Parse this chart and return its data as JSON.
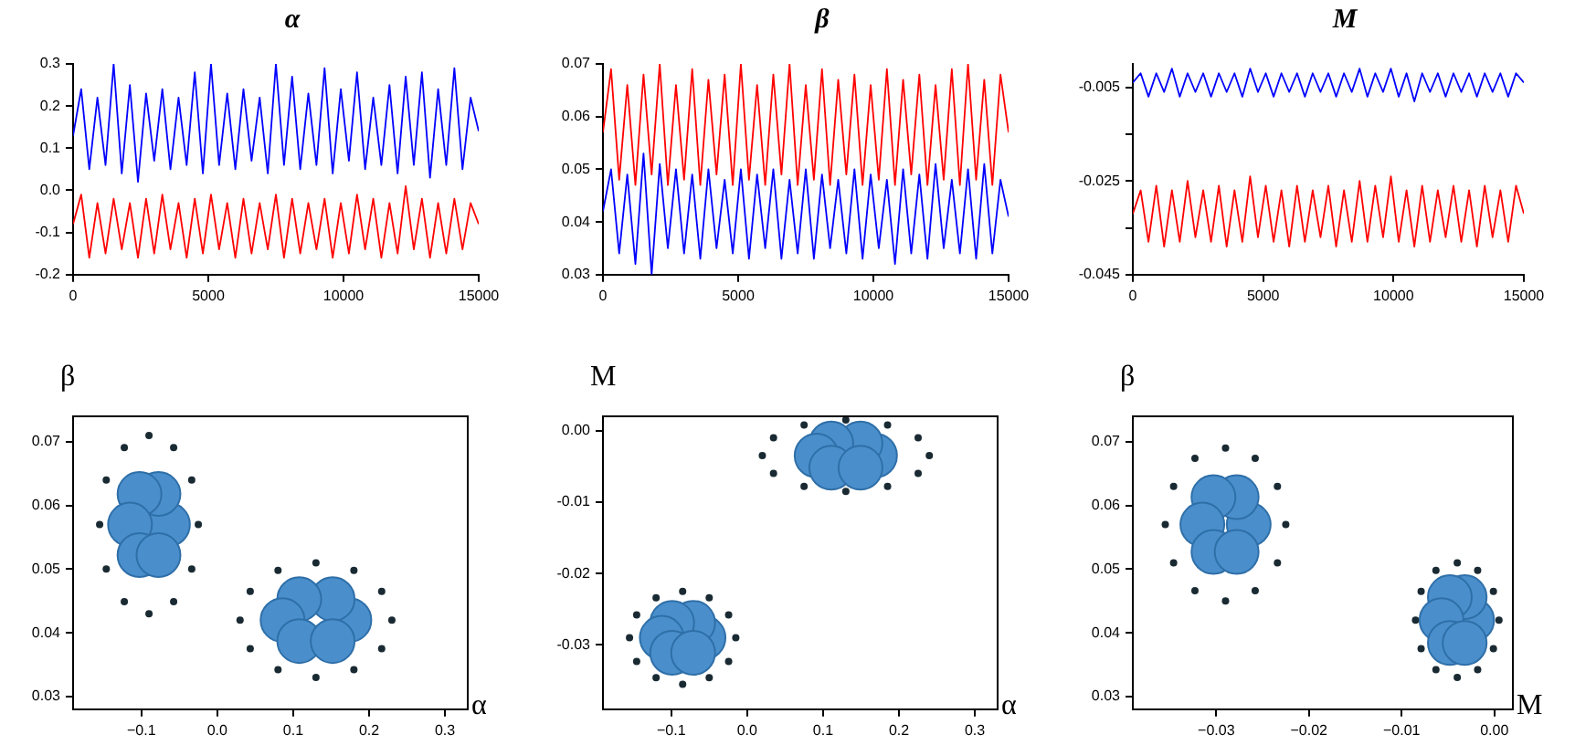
{
  "chart_data": [
    {
      "type": "line",
      "title": "α",
      "grid": false,
      "legend": false,
      "marker": "none",
      "x": [
        0,
        300,
        600,
        900,
        1200,
        1500,
        1800,
        2100,
        2400,
        2700,
        3000,
        3300,
        3600,
        3900,
        4200,
        4500,
        4800,
        5100,
        5400,
        5700,
        6000,
        6300,
        6600,
        6900,
        7200,
        7500,
        7800,
        8100,
        8400,
        8700,
        9000,
        9300,
        9600,
        9900,
        10200,
        10500,
        10800,
        11100,
        11400,
        11700,
        12000,
        12300,
        12600,
        12900,
        13200,
        13500,
        13800,
        14100,
        14400,
        14700,
        15000
      ],
      "xlim": [
        0,
        15000
      ],
      "xticks": [
        0,
        5000,
        10000,
        15000
      ],
      "ylim": [
        -0.2,
        0.3
      ],
      "yticks": [
        -0.2,
        -0.1,
        {
          "value": 0,
          "label": "0.0"
        },
        0.1,
        0.2,
        0.3
      ],
      "series": [
        {
          "color": "#0000ff",
          "values": [
            0.13,
            0.24,
            0.05,
            0.22,
            0.06,
            0.3,
            0.04,
            0.25,
            0.02,
            0.23,
            0.07,
            0.24,
            0.05,
            0.22,
            0.06,
            0.28,
            0.04,
            0.3,
            0.06,
            0.23,
            0.05,
            0.24,
            0.07,
            0.22,
            0.04,
            0.3,
            0.06,
            0.27,
            0.05,
            0.23,
            0.06,
            0.29,
            0.04,
            0.24,
            0.07,
            0.28,
            0.05,
            0.22,
            0.06,
            0.25,
            0.04,
            0.27,
            0.06,
            0.28,
            0.03,
            0.24,
            0.06,
            0.29,
            0.05,
            0.22,
            0.14
          ]
        },
        {
          "color": "#ff0000",
          "values": [
            -0.08,
            -0.01,
            -0.16,
            -0.03,
            -0.15,
            -0.02,
            -0.14,
            -0.03,
            -0.16,
            -0.02,
            -0.15,
            -0.01,
            -0.14,
            -0.03,
            -0.16,
            -0.02,
            -0.15,
            -0.01,
            -0.14,
            -0.03,
            -0.16,
            -0.02,
            -0.15,
            -0.03,
            -0.14,
            -0.01,
            -0.16,
            -0.02,
            -0.15,
            -0.03,
            -0.14,
            -0.02,
            -0.16,
            -0.03,
            -0.15,
            -0.01,
            -0.14,
            -0.02,
            -0.16,
            -0.03,
            -0.15,
            0.01,
            -0.14,
            -0.02,
            -0.16,
            -0.03,
            -0.15,
            -0.02,
            -0.14,
            -0.03,
            -0.08
          ]
        }
      ]
    },
    {
      "type": "line",
      "title": "β",
      "grid": false,
      "legend": false,
      "marker": "none",
      "x": [
        0,
        300,
        600,
        900,
        1200,
        1500,
        1800,
        2100,
        2400,
        2700,
        3000,
        3300,
        3600,
        3900,
        4200,
        4500,
        4800,
        5100,
        5400,
        5700,
        6000,
        6300,
        6600,
        6900,
        7200,
        7500,
        7800,
        8100,
        8400,
        8700,
        9000,
        9300,
        9600,
        9900,
        10200,
        10500,
        10800,
        11100,
        11400,
        11700,
        12000,
        12300,
        12600,
        12900,
        13200,
        13500,
        13800,
        14100,
        14400,
        14700,
        15000
      ],
      "xlim": [
        0,
        15000
      ],
      "xticks": [
        0,
        5000,
        10000,
        15000
      ],
      "ylim": [
        0.03,
        0.07
      ],
      "yticks": [
        0.03,
        0.04,
        0.05,
        0.06,
        0.07
      ],
      "series": [
        {
          "color": "#ff0000",
          "values": [
            0.057,
            0.069,
            0.048,
            0.066,
            0.047,
            0.068,
            0.049,
            0.07,
            0.047,
            0.066,
            0.048,
            0.069,
            0.047,
            0.067,
            0.049,
            0.068,
            0.047,
            0.07,
            0.048,
            0.066,
            0.047,
            0.068,
            0.049,
            0.07,
            0.047,
            0.066,
            0.048,
            0.069,
            0.047,
            0.067,
            0.049,
            0.068,
            0.047,
            0.066,
            0.048,
            0.069,
            0.047,
            0.067,
            0.049,
            0.068,
            0.047,
            0.066,
            0.048,
            0.069,
            0.047,
            0.07,
            0.048,
            0.067,
            0.047,
            0.068,
            0.057
          ]
        },
        {
          "color": "#0000ff",
          "values": [
            0.042,
            0.05,
            0.034,
            0.049,
            0.032,
            0.053,
            0.03,
            0.051,
            0.035,
            0.05,
            0.034,
            0.049,
            0.033,
            0.05,
            0.035,
            0.048,
            0.034,
            0.05,
            0.033,
            0.049,
            0.035,
            0.05,
            0.033,
            0.048,
            0.034,
            0.05,
            0.033,
            0.049,
            0.035,
            0.048,
            0.034,
            0.05,
            0.033,
            0.049,
            0.035,
            0.048,
            0.032,
            0.05,
            0.034,
            0.049,
            0.033,
            0.051,
            0.035,
            0.048,
            0.034,
            0.05,
            0.033,
            0.051,
            0.034,
            0.048,
            0.041
          ]
        }
      ]
    },
    {
      "type": "line",
      "title": "M",
      "grid": false,
      "legend": false,
      "marker": "none",
      "x": [
        0,
        300,
        600,
        900,
        1200,
        1500,
        1800,
        2100,
        2400,
        2700,
        3000,
        3300,
        3600,
        3900,
        4200,
        4500,
        4800,
        5100,
        5400,
        5700,
        6000,
        6300,
        6600,
        6900,
        7200,
        7500,
        7800,
        8100,
        8400,
        8700,
        9000,
        9300,
        9600,
        9900,
        10200,
        10500,
        10800,
        11100,
        11400,
        11700,
        12000,
        12300,
        12600,
        12900,
        13200,
        13500,
        13800,
        14100,
        14400,
        14700,
        15000
      ],
      "xlim": [
        0,
        15000
      ],
      "xticks": [
        0,
        5000,
        10000,
        15000
      ],
      "ylim": [
        -0.045,
        0
      ],
      "yticks": [
        -0.045,
        {
          "value": -0.035,
          "label": null
        },
        -0.025,
        {
          "value": -0.015,
          "label": null
        },
        -0.005
      ],
      "series": [
        {
          "color": "#0000ff",
          "values": [
            -0.004,
            -0.002,
            -0.007,
            -0.002,
            -0.006,
            -0.001,
            -0.007,
            -0.002,
            -0.006,
            -0.002,
            -0.007,
            -0.002,
            -0.006,
            -0.002,
            -0.007,
            -0.001,
            -0.006,
            -0.002,
            -0.007,
            -0.002,
            -0.006,
            -0.002,
            -0.007,
            -0.002,
            -0.006,
            -0.002,
            -0.007,
            -0.002,
            -0.006,
            -0.001,
            -0.007,
            -0.002,
            -0.006,
            -0.001,
            -0.007,
            -0.002,
            -0.008,
            -0.002,
            -0.006,
            -0.002,
            -0.007,
            -0.002,
            -0.006,
            -0.002,
            -0.007,
            -0.002,
            -0.006,
            -0.002,
            -0.007,
            -0.002,
            -0.004
          ]
        },
        {
          "color": "#ff0000",
          "values": [
            -0.032,
            -0.027,
            -0.038,
            -0.026,
            -0.039,
            -0.027,
            -0.038,
            -0.025,
            -0.037,
            -0.027,
            -0.038,
            -0.026,
            -0.039,
            -0.027,
            -0.038,
            -0.024,
            -0.037,
            -0.026,
            -0.038,
            -0.027,
            -0.039,
            -0.026,
            -0.038,
            -0.027,
            -0.037,
            -0.026,
            -0.039,
            -0.027,
            -0.038,
            -0.025,
            -0.038,
            -0.026,
            -0.037,
            -0.024,
            -0.038,
            -0.027,
            -0.039,
            -0.026,
            -0.038,
            -0.027,
            -0.037,
            -0.026,
            -0.038,
            -0.027,
            -0.039,
            -0.026,
            -0.037,
            -0.027,
            -0.038,
            -0.026,
            -0.032
          ]
        }
      ]
    },
    {
      "type": "scatter",
      "xlabel": "α",
      "ylabel": "β",
      "grid": false,
      "legend": false,
      "marker": "circle",
      "xlim": [
        -0.19,
        0.33
      ],
      "xticks": [
        {
          "value": -0.1,
          "label": "−0.1"
        },
        {
          "value": 0,
          "label": "0.0"
        },
        0.1,
        0.2,
        0.3
      ],
      "ylim": [
        0.028,
        0.074
      ],
      "yticks": [
        0.03,
        0.04,
        0.05,
        0.06,
        0.07
      ],
      "series": [
        {
          "type": "bubble",
          "color": "#4a8fcc",
          "x": [
            -0.065,
            -0.0775,
            -0.1025,
            -0.115,
            -0.1025,
            -0.0775,
            0.174,
            0.152,
            0.108,
            0.086,
            0.108,
            0.152
          ],
          "values": [
            0.057,
            0.0618,
            0.0618,
            0.057,
            0.0522,
            0.0522,
            0.042,
            0.0453,
            0.0453,
            0.042,
            0.0387,
            0.0387
          ],
          "sizes": [
            1,
            1,
            1,
            1,
            1,
            1,
            1,
            1,
            1,
            1,
            1,
            1
          ]
        },
        {
          "type": "scatter",
          "color": "#1a2a33",
          "x": [
            -0.025,
            -0.0337,
            -0.0575,
            -0.09,
            -0.1225,
            -0.1463,
            -0.155,
            -0.1463,
            -0.1225,
            -0.09,
            -0.0575,
            -0.0337,
            0.23,
            0.2166,
            0.18,
            0.13,
            0.08,
            0.0434,
            0.03,
            0.0434,
            0.08,
            0.13,
            0.18,
            0.2166
          ],
          "values": [
            0.057,
            0.064,
            0.0691,
            0.071,
            0.0691,
            0.064,
            0.057,
            0.05,
            0.0449,
            0.043,
            0.0449,
            0.05,
            0.042,
            0.0465,
            0.0498,
            0.051,
            0.0498,
            0.0465,
            0.042,
            0.0375,
            0.0342,
            0.033,
            0.0342,
            0.0375
          ]
        }
      ]
    },
    {
      "type": "scatter",
      "xlabel": "α",
      "ylabel": "M",
      "grid": false,
      "legend": false,
      "marker": "circle",
      "xlim": [
        -0.19,
        0.33
      ],
      "xticks": [
        {
          "value": -0.1,
          "label": "−0.1"
        },
        {
          "value": 0,
          "label": "0.0"
        },
        0.1,
        0.2,
        0.3
      ],
      "ylim": [
        -0.039,
        0.002
      ],
      "yticks": [
        -0.03,
        -0.02,
        -0.01,
        {
          "value": 0,
          "label": "0.00"
        }
      ],
      "series": [
        {
          "type": "bubble",
          "color": "#4a8fcc",
          "x": [
            0.1685,
            0.1493,
            0.1108,
            0.0915,
            0.1108,
            0.1493,
            -0.0575,
            -0.0712,
            -0.0988,
            -0.1125,
            -0.0988,
            -0.0712
          ],
          "values": [
            -0.0035,
            -0.0018,
            -0.0018,
            -0.0035,
            -0.0052,
            -0.0052,
            -0.029,
            -0.0269,
            -0.0269,
            -0.029,
            -0.0311,
            -0.0311
          ],
          "sizes": [
            1,
            1,
            1,
            1,
            1,
            1,
            1,
            1,
            1,
            1,
            1,
            1
          ]
        },
        {
          "type": "scatter",
          "color": "#1a2a33",
          "x": [
            0.24,
            0.2253,
            0.185,
            0.13,
            0.075,
            0.0347,
            0.02,
            0.0347,
            0.075,
            0.13,
            0.185,
            0.2253,
            -0.015,
            -0.0244,
            -0.05,
            -0.085,
            -0.12,
            -0.1456,
            -0.155,
            -0.1456,
            -0.12,
            -0.085,
            -0.05,
            -0.0244
          ],
          "values": [
            -0.0035,
            -0.001,
            0.0008,
            0.0015,
            0.0008,
            -0.001,
            -0.0035,
            -0.006,
            -0.0078,
            -0.0085,
            -0.0078,
            -0.006,
            -0.029,
            -0.0258,
            -0.0234,
            -0.0225,
            -0.0234,
            -0.0258,
            -0.029,
            -0.0323,
            -0.0346,
            -0.0355,
            -0.0346,
            -0.0323
          ]
        }
      ]
    },
    {
      "type": "scatter",
      "xlabel": "M",
      "ylabel": "β",
      "grid": false,
      "legend": false,
      "marker": "circle",
      "xlim": [
        -0.039,
        0.002
      ],
      "xticks": [
        {
          "value": -0.03,
          "label": "−0.03"
        },
        {
          "value": -0.02,
          "label": "−0.02"
        },
        {
          "value": -0.01,
          "label": "−0.01"
        },
        {
          "value": 0,
          "label": "0.00"
        }
      ],
      "ylim": [
        0.028,
        0.074
      ],
      "yticks": [
        0.03,
        0.04,
        0.05,
        0.06,
        0.07
      ],
      "series": [
        {
          "type": "bubble",
          "color": "#4a8fcc",
          "x": [
            -0.0265,
            -0.0278,
            -0.0303,
            -0.0315,
            -0.0303,
            -0.0278,
            -0.0024,
            -0.0032,
            -0.0048,
            -0.0057,
            -0.0048,
            -0.0032
          ],
          "values": [
            0.057,
            0.0613,
            0.0613,
            0.057,
            0.0527,
            0.0527,
            0.042,
            0.0456,
            0.0456,
            0.042,
            0.0384,
            0.0384
          ],
          "sizes": [
            1,
            1,
            1,
            1,
            1,
            1,
            1,
            1,
            1,
            1,
            1,
            1
          ]
        },
        {
          "type": "scatter",
          "color": "#1a2a33",
          "x": [
            -0.0225,
            -0.0234,
            -0.0258,
            -0.029,
            -0.0323,
            -0.0346,
            -0.0355,
            -0.0346,
            -0.0323,
            -0.029,
            -0.0258,
            -0.0234,
            0.0005,
            -0.0001,
            -0.0018,
            -0.004,
            -0.0063,
            -0.0079,
            -0.0085,
            -0.0079,
            -0.0063,
            -0.004,
            -0.0018,
            -0.0001
          ],
          "values": [
            0.057,
            0.063,
            0.0674,
            0.069,
            0.0674,
            0.063,
            0.057,
            0.051,
            0.0466,
            0.045,
            0.0466,
            0.051,
            0.042,
            0.0465,
            0.0498,
            0.051,
            0.0498,
            0.0465,
            0.042,
            0.0375,
            0.0342,
            0.033,
            0.0342,
            0.0375
          ]
        }
      ]
    }
  ]
}
